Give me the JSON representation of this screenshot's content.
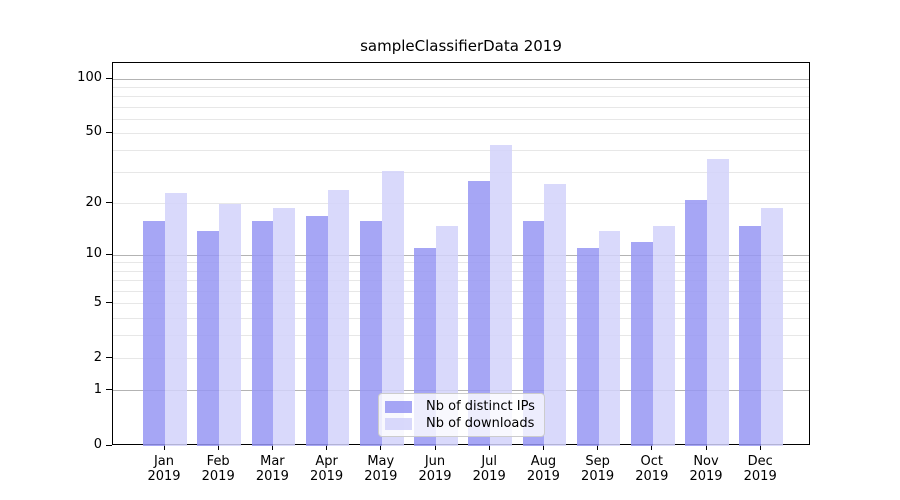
{
  "title": "sampleClassifierData 2019",
  "legend": {
    "items": [
      {
        "label": "Nb of distinct IPs",
        "series": "ips"
      },
      {
        "label": "Nb of downloads",
        "series": "downloads"
      }
    ]
  },
  "colors": {
    "ips_bar": "#9797F3",
    "downloads_bar": "#D2D2FA",
    "grid_major": "#B3B3B3",
    "grid_minor": "#E7E7E7",
    "axis_line": "#000000",
    "text": "#000000",
    "legend_border": "#CCCCCC"
  },
  "x_axis": {
    "months": [
      "Jan",
      "Feb",
      "Mar",
      "Apr",
      "May",
      "Jun",
      "Jul",
      "Aug",
      "Sep",
      "Oct",
      "Nov",
      "Dec"
    ],
    "year": "2019"
  },
  "y_axis": {
    "tick_values": [
      0,
      1,
      2,
      5,
      10,
      20,
      50,
      100
    ],
    "major_grid_values": [
      1,
      10,
      100
    ],
    "minor_grid_values": [
      2,
      3,
      4,
      5,
      6,
      7,
      8,
      9,
      20,
      30,
      40,
      50,
      60,
      70,
      80,
      90
    ]
  },
  "chart_data": {
    "type": "bar",
    "title": "sampleClassifierData 2019",
    "categories": [
      "Jan 2019",
      "Feb 2019",
      "Mar 2019",
      "Apr 2019",
      "May 2019",
      "Jun 2019",
      "Jul 2019",
      "Aug 2019",
      "Sep 2019",
      "Oct 2019",
      "Nov 2019",
      "Dec 2019"
    ],
    "series": [
      {
        "name": "Nb of distinct IPs",
        "key": "ips",
        "values": [
          16,
          14,
          16,
          17,
          16,
          11,
          27,
          16,
          11,
          12,
          21,
          15
        ]
      },
      {
        "name": "Nb of downloads",
        "key": "downloads",
        "values": [
          23,
          20,
          19,
          24,
          31,
          15,
          43,
          26,
          14,
          15,
          36,
          19
        ]
      }
    ],
    "xlabel": "",
    "ylabel": "",
    "yscale": "log1p",
    "yticks": [
      0,
      1,
      2,
      5,
      10,
      20,
      50,
      100
    ],
    "ylim": [
      0,
      123
    ],
    "grid": "on",
    "legend_position": "lower center"
  }
}
